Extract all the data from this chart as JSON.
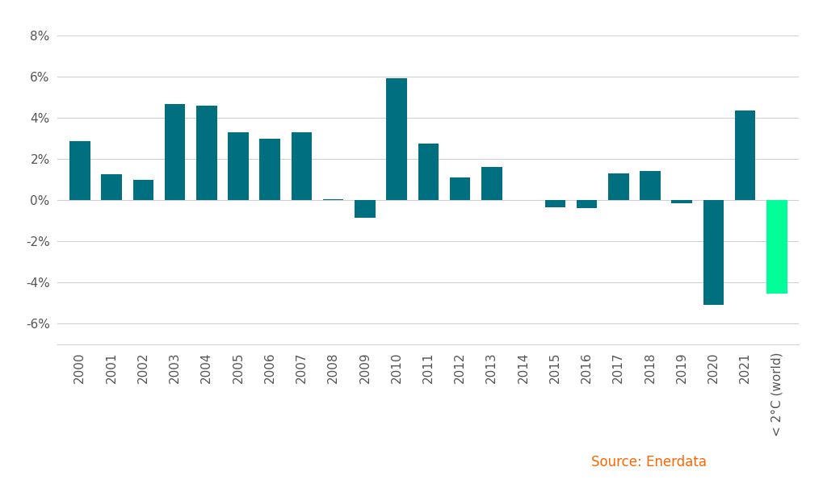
{
  "categories": [
    "2000",
    "2001",
    "2002",
    "2003",
    "2004",
    "2005",
    "2006",
    "2007",
    "2008",
    "2009",
    "2010",
    "2011",
    "2012",
    "2013",
    "2014",
    "2015",
    "2016",
    "2017",
    "2018",
    "2019",
    "2020",
    "2021",
    "< 2°C (world)"
  ],
  "values": [
    2.85,
    1.25,
    1.0,
    4.65,
    4.6,
    3.3,
    3.0,
    3.3,
    0.05,
    -0.85,
    5.9,
    2.75,
    1.1,
    1.6,
    0.0,
    -0.35,
    -0.4,
    1.3,
    1.4,
    -0.15,
    -5.1,
    4.35,
    -4.55
  ],
  "bar_color_teal": "#007080",
  "bar_color_green": "#00FF99",
  "source_text": "Source: Enerdata",
  "source_color": "#FF6600",
  "background_color": "#FFFFFF",
  "ylim": [
    -7,
    9
  ],
  "yticks": [
    -6,
    -4,
    -2,
    0,
    2,
    4,
    6,
    8
  ],
  "ytick_labels": [
    "-6%",
    "-4%",
    "-2%",
    "0%",
    "2%",
    "4%",
    "6%",
    "8%"
  ],
  "grid_color": "#D0D0D0",
  "bar_width": 0.65,
  "figsize": [
    10.2,
    6.1
  ],
  "dpi": 100,
  "tick_fontsize": 11,
  "source_fontsize": 12
}
